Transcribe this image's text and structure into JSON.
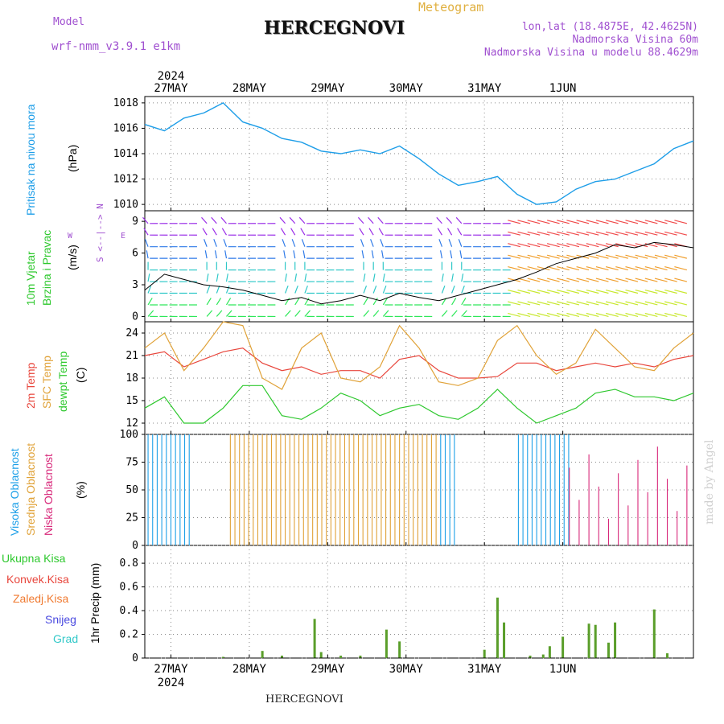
{
  "header": {
    "model_label": "Model",
    "model_name": "wrf-nmm_v3.9.1 e1km",
    "meteogram": "Meteogram",
    "title": "HERCEGNOVI",
    "lonlat": "lon,lat (18.4875E, 42.4625N)",
    "elev": "Nadmorska Visina 60m",
    "elev_model": "Nadmorska Visina u modelu 88.4629m",
    "credit": "made by Angel",
    "footer": "HERCEGNOVI"
  },
  "axes": {
    "dates": [
      "27MAY",
      "28MAY",
      "29MAY",
      "30MAY",
      "31MAY",
      "1JUN"
    ],
    "year": "2024"
  },
  "panel_labels": {
    "pressure": [
      "Pritisak na nivou mora",
      "(hPa)"
    ],
    "wind": [
      "10m Vjetar",
      "Brzina i Pravac",
      "(m/s)"
    ],
    "compass": "S <--|--> N",
    "compass_w": "W",
    "compass_e": "E",
    "temp": [
      "2m Temp",
      "SFC Temp",
      "dewpt Temp",
      "(C)"
    ],
    "cloud": [
      "Visoka Oblacnost",
      "Srednja Oblacnost",
      "Niska Oblacnost",
      "(%)"
    ],
    "precip_unit": "1hr Precip (mm)",
    "precip_legend": [
      "Ukupna Kisa",
      "Konvek.Kisa",
      "Zaledj.Kisa",
      "Snijeg",
      "Grad"
    ]
  },
  "colors": {
    "pressure": "#1e9ee8",
    "t2m": "#e8463c",
    "tsfc": "#e0a238",
    "dewpt": "#2ec82e",
    "cloud_high": "#1ea0e8",
    "cloud_mid": "#e0a238",
    "cloud_low": "#d8287a",
    "rain_total": "#5a9e2a",
    "rain_conv": "#d83a3a",
    "rain_frz": "#f07a30",
    "snow": "#4a4ae0",
    "hail": "#30c8c8"
  },
  "chart_data": [
    {
      "type": "line",
      "name": "pressure",
      "x": [
        0,
        6,
        12,
        18,
        24,
        30,
        36,
        42,
        48,
        54,
        60,
        66,
        72,
        78,
        84,
        90,
        96,
        102,
        108,
        114,
        120,
        126,
        132,
        138,
        144,
        150,
        156,
        162,
        168
      ],
      "series": [
        {
          "values": [
            1016.3,
            1015.8,
            1016.8,
            1017.2,
            1018.0,
            1016.5,
            1016.0,
            1015.2,
            1014.9,
            1014.2,
            1014.0,
            1014.3,
            1014.0,
            1014.6,
            1013.6,
            1012.4,
            1011.5,
            1011.8,
            1012.2,
            1010.8,
            1010.0,
            1010.2,
            1011.2,
            1011.8,
            1012.0,
            1012.6,
            1013.2,
            1014.4,
            1015.0
          ]
        }
      ],
      "ylim": [
        1009.5,
        1018.5
      ],
      "yticks": [
        1010,
        1012,
        1014,
        1016,
        1018
      ]
    },
    {
      "type": "line",
      "name": "wind",
      "x": [
        0,
        6,
        12,
        18,
        24,
        30,
        36,
        42,
        48,
        54,
        60,
        66,
        72,
        78,
        84,
        90,
        96,
        102,
        108,
        114,
        120,
        126,
        132,
        138,
        144,
        150,
        156,
        162,
        168
      ],
      "series": [
        {
          "values": [
            2.5,
            4.0,
            3.5,
            3.0,
            2.8,
            2.5,
            2.0,
            1.5,
            1.8,
            1.2,
            1.5,
            2.0,
            1.5,
            2.2,
            1.8,
            1.5,
            2.0,
            2.5,
            3.0,
            3.5,
            4.2,
            5.0,
            5.5,
            6.0,
            6.8,
            6.5,
            7.0,
            6.8,
            6.5
          ]
        }
      ],
      "ylim": [
        -0.5,
        10
      ],
      "yticks": [
        0,
        3,
        6,
        9
      ]
    },
    {
      "type": "line",
      "name": "temperature",
      "x": [
        0,
        6,
        12,
        18,
        24,
        30,
        36,
        42,
        48,
        54,
        60,
        66,
        72,
        78,
        84,
        90,
        96,
        102,
        108,
        114,
        120,
        126,
        132,
        138,
        144,
        150,
        156,
        162,
        168
      ],
      "series": [
        {
          "name": "2m Temp",
          "values": [
            21,
            21.5,
            19.5,
            20.5,
            21.5,
            22,
            20,
            19,
            19.5,
            18.5,
            19,
            19,
            18,
            20.5,
            21,
            19,
            18,
            18,
            18.2,
            20,
            20,
            19,
            19.5,
            20,
            19.5,
            20,
            19.5,
            20.5,
            21
          ]
        },
        {
          "name": "SFC Temp",
          "values": [
            22,
            24,
            19,
            22,
            25.5,
            25,
            18,
            16.5,
            22,
            24,
            18,
            17.5,
            19.5,
            25,
            22,
            17.5,
            17,
            18,
            23,
            25,
            21,
            18.5,
            20,
            24.5,
            22,
            19.5,
            19,
            22,
            24
          ]
        },
        {
          "name": "dewpt Temp",
          "values": [
            14,
            15.5,
            12,
            12,
            14,
            17,
            17,
            13,
            12.5,
            14,
            16,
            15,
            13,
            14,
            14.5,
            13,
            12.5,
            14,
            16.5,
            14,
            12,
            13,
            14,
            16,
            16.5,
            15.5,
            15.5,
            15,
            16
          ]
        }
      ],
      "ylim": [
        10.5,
        25.5
      ],
      "yticks": [
        12,
        15,
        18,
        21,
        24
      ]
    },
    {
      "type": "bar",
      "name": "cloud",
      "yticks": [
        0,
        25,
        50,
        75,
        100
      ],
      "ylim": [
        0,
        100
      ]
    },
    {
      "type": "bar",
      "name": "precip",
      "x": [
        24,
        36,
        42,
        52,
        54,
        60,
        66,
        74,
        78,
        104,
        108,
        110,
        118,
        122,
        124,
        128,
        136,
        138,
        142,
        144,
        156,
        160
      ],
      "series": [
        {
          "name": "Ukupna Kisa",
          "values": [
            0.01,
            0.06,
            0.02,
            0.33,
            0.05,
            0.02,
            0.02,
            0.24,
            0.14,
            0.07,
            0.51,
            0.3,
            0.02,
            0.03,
            0.1,
            0.18,
            0.29,
            0.28,
            0.13,
            0.3,
            0.41,
            0.04
          ]
        }
      ],
      "ylim": [
        0,
        0.95
      ],
      "yticks": [
        0,
        0.2,
        0.4,
        0.6,
        0.8
      ]
    }
  ]
}
